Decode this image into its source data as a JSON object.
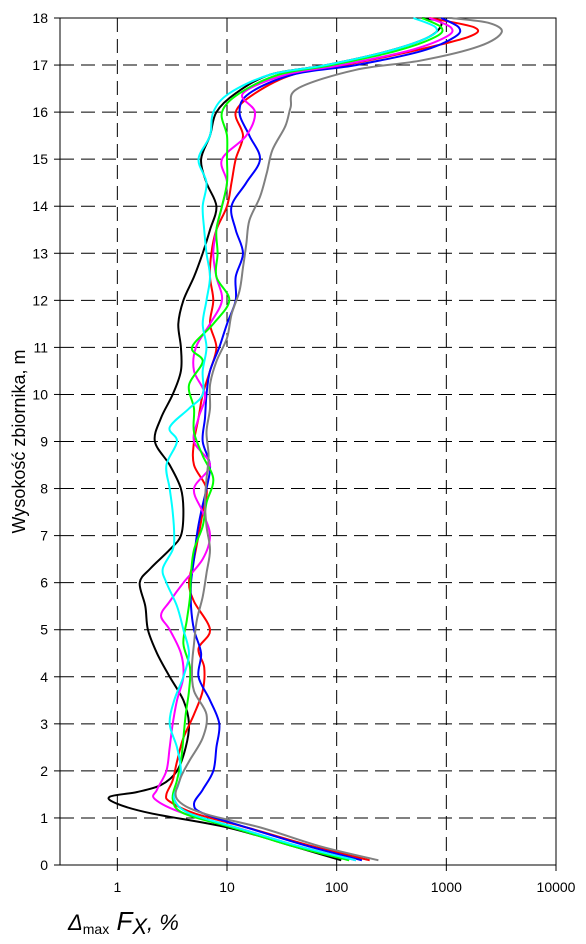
{
  "chart_data": {
    "type": "line",
    "ylabel": "Wysokość zbiornika, m",
    "xlabel": {
      "delta": "Δ",
      "sub": "max",
      "main": "F",
      "main_sub": "X",
      "rest": ", %"
    },
    "x_scale": "log",
    "xlim": [
      0.3,
      10000
    ],
    "ylim": [
      0,
      18
    ],
    "x_ticks": [
      1,
      10,
      100,
      1000,
      10000
    ],
    "x_tick_labels": [
      "1",
      "10",
      "100",
      "1000",
      "10000"
    ],
    "y_ticks": [
      0,
      1,
      2,
      3,
      4,
      5,
      6,
      7,
      8,
      9,
      10,
      11,
      12,
      13,
      14,
      15,
      16,
      17,
      18
    ],
    "grid": "dashed",
    "series": [
      {
        "color": "#000000",
        "points": [
          [
            110,
            0.1
          ],
          [
            40,
            0.4
          ],
          [
            10,
            0.8
          ],
          [
            2,
            1.1
          ],
          [
            1,
            1.3
          ],
          [
            0.85,
            1.45
          ],
          [
            1.5,
            1.55
          ],
          [
            2.5,
            1.7
          ],
          [
            3.5,
            2
          ],
          [
            4.2,
            2.5
          ],
          [
            4.5,
            3
          ],
          [
            4,
            3.5
          ],
          [
            3,
            4
          ],
          [
            2.3,
            4.5
          ],
          [
            1.9,
            5
          ],
          [
            1.8,
            5.5
          ],
          [
            1.6,
            6
          ],
          [
            2,
            6.3
          ],
          [
            3,
            6.7
          ],
          [
            3.8,
            7
          ],
          [
            4,
            7.5
          ],
          [
            3.8,
            8
          ],
          [
            3,
            8.5
          ],
          [
            2.2,
            9
          ],
          [
            2.5,
            9.5
          ],
          [
            3.2,
            10
          ],
          [
            3.8,
            10.5
          ],
          [
            3.8,
            11
          ],
          [
            3.6,
            11.5
          ],
          [
            4,
            12
          ],
          [
            5,
            12.5
          ],
          [
            6,
            13
          ],
          [
            7,
            13.5
          ],
          [
            8,
            14
          ],
          [
            6.5,
            14.5
          ],
          [
            5.8,
            15
          ],
          [
            7,
            15.5
          ],
          [
            8,
            16
          ],
          [
            12,
            16.4
          ],
          [
            25,
            16.8
          ],
          [
            80,
            17
          ],
          [
            300,
            17.3
          ],
          [
            700,
            17.6
          ],
          [
            900,
            17.9
          ],
          [
            600,
            18
          ]
        ]
      },
      {
        "color": "#ff0000",
        "points": [
          [
            200,
            0.1
          ],
          [
            60,
            0.4
          ],
          [
            15,
            0.8
          ],
          [
            5,
            1.1
          ],
          [
            3,
            1.35
          ],
          [
            2.8,
            1.5
          ],
          [
            3.2,
            1.8
          ],
          [
            3.5,
            2.2
          ],
          [
            4,
            2.7
          ],
          [
            5,
            3.2
          ],
          [
            6,
            3.7
          ],
          [
            6.2,
            4.2
          ],
          [
            5.5,
            4.6
          ],
          [
            7,
            5
          ],
          [
            5,
            5.6
          ],
          [
            4.5,
            6
          ],
          [
            5,
            6.5
          ],
          [
            5.5,
            7
          ],
          [
            6,
            7.5
          ],
          [
            6.5,
            8
          ],
          [
            5,
            8.5
          ],
          [
            5,
            9
          ],
          [
            5.5,
            9.5
          ],
          [
            6,
            10
          ],
          [
            7,
            10.5
          ],
          [
            8,
            11
          ],
          [
            7,
            11.5
          ],
          [
            7.5,
            12
          ],
          [
            7,
            12.5
          ],
          [
            7.2,
            13
          ],
          [
            8,
            13.5
          ],
          [
            10,
            14
          ],
          [
            11,
            14.5
          ],
          [
            12,
            15
          ],
          [
            14,
            15.5
          ],
          [
            12,
            16
          ],
          [
            18,
            16.4
          ],
          [
            40,
            16.8
          ],
          [
            120,
            17
          ],
          [
            500,
            17.3
          ],
          [
            1600,
            17.6
          ],
          [
            1800,
            17.8
          ],
          [
            700,
            18
          ]
        ]
      },
      {
        "color": "#0000ff",
        "points": [
          [
            170,
            0.1
          ],
          [
            55,
            0.4
          ],
          [
            15,
            0.8
          ],
          [
            6,
            1.1
          ],
          [
            5,
            1.3
          ],
          [
            6,
            1.6
          ],
          [
            7.5,
            2
          ],
          [
            8,
            2.5
          ],
          [
            8.5,
            3
          ],
          [
            7,
            3.5
          ],
          [
            5.5,
            4
          ],
          [
            5.8,
            4.5
          ],
          [
            5,
            5
          ],
          [
            4.7,
            5.5
          ],
          [
            4.7,
            6
          ],
          [
            5,
            6.5
          ],
          [
            5.3,
            7
          ],
          [
            5.8,
            7.5
          ],
          [
            6.5,
            8
          ],
          [
            7,
            8.5
          ],
          [
            6,
            9
          ],
          [
            6.3,
            9.5
          ],
          [
            6.5,
            10
          ],
          [
            7,
            10.5
          ],
          [
            8.5,
            11
          ],
          [
            10,
            11.5
          ],
          [
            12,
            12
          ],
          [
            12,
            12.5
          ],
          [
            14,
            13
          ],
          [
            12,
            13.5
          ],
          [
            11,
            14
          ],
          [
            15,
            14.5
          ],
          [
            20,
            15
          ],
          [
            16,
            15.5
          ],
          [
            13,
            16
          ],
          [
            16,
            16.4
          ],
          [
            40,
            16.8
          ],
          [
            150,
            17
          ],
          [
            600,
            17.3
          ],
          [
            1200,
            17.6
          ],
          [
            1300,
            17.8
          ],
          [
            900,
            18
          ]
        ]
      },
      {
        "color": "#ff00ff",
        "points": [
          [
            150,
            0.1
          ],
          [
            45,
            0.4
          ],
          [
            12,
            0.8
          ],
          [
            4,
            1.1
          ],
          [
            2.2,
            1.4
          ],
          [
            2.3,
            1.6
          ],
          [
            2.8,
            2
          ],
          [
            3,
            2.5
          ],
          [
            3.2,
            3
          ],
          [
            3.5,
            3.5
          ],
          [
            4,
            4
          ],
          [
            3.8,
            4.5
          ],
          [
            3,
            5
          ],
          [
            2.5,
            5.3
          ],
          [
            3,
            5.6
          ],
          [
            4,
            6
          ],
          [
            6,
            6.5
          ],
          [
            7,
            7
          ],
          [
            6,
            7.5
          ],
          [
            5,
            8
          ],
          [
            7,
            8.5
          ],
          [
            5,
            9
          ],
          [
            5.5,
            9.5
          ],
          [
            6.3,
            10
          ],
          [
            5,
            10.5
          ],
          [
            5.2,
            11
          ],
          [
            7,
            11.5
          ],
          [
            9,
            12
          ],
          [
            8,
            12.5
          ],
          [
            7.5,
            13
          ],
          [
            8,
            13.5
          ],
          [
            9,
            14
          ],
          [
            10,
            14.5
          ],
          [
            9,
            15
          ],
          [
            15,
            15.5
          ],
          [
            18,
            16
          ],
          [
            14,
            16.4
          ],
          [
            35,
            16.8
          ],
          [
            110,
            17
          ],
          [
            450,
            17.3
          ],
          [
            1000,
            17.6
          ],
          [
            1100,
            17.8
          ],
          [
            700,
            18
          ]
        ]
      },
      {
        "color": "#00ff00",
        "points": [
          [
            130,
            0.1
          ],
          [
            40,
            0.4
          ],
          [
            11,
            0.8
          ],
          [
            4,
            1.1
          ],
          [
            3.2,
            1.4
          ],
          [
            3.5,
            1.8
          ],
          [
            3.8,
            2.2
          ],
          [
            4,
            2.7
          ],
          [
            4.2,
            3.2
          ],
          [
            4.5,
            3.7
          ],
          [
            4.6,
            4.2
          ],
          [
            4,
            4.7
          ],
          [
            4.3,
            5.2
          ],
          [
            4.6,
            5.7
          ],
          [
            4.7,
            6.2
          ],
          [
            5,
            6.7
          ],
          [
            6,
            7.2
          ],
          [
            6.5,
            7.7
          ],
          [
            7.5,
            8.2
          ],
          [
            6,
            8.7
          ],
          [
            5,
            9.2
          ],
          [
            5,
            9.7
          ],
          [
            4.5,
            10.2
          ],
          [
            6,
            10.7
          ],
          [
            4.8,
            11
          ],
          [
            7.5,
            11.5
          ],
          [
            10.5,
            12
          ],
          [
            8,
            12.5
          ],
          [
            8.2,
            13
          ],
          [
            8,
            13.5
          ],
          [
            9,
            14
          ],
          [
            10,
            14.5
          ],
          [
            10,
            15
          ],
          [
            10,
            15.5
          ],
          [
            9,
            16
          ],
          [
            13,
            16.4
          ],
          [
            30,
            16.8
          ],
          [
            90,
            17
          ],
          [
            350,
            17.3
          ],
          [
            800,
            17.6
          ],
          [
            900,
            17.8
          ],
          [
            600,
            18
          ]
        ]
      },
      {
        "color": "#00ffff",
        "points": [
          [
            150,
            0.1
          ],
          [
            45,
            0.4
          ],
          [
            12,
            0.8
          ],
          [
            4.5,
            1.1
          ],
          [
            3.3,
            1.4
          ],
          [
            3.6,
            1.7
          ],
          [
            3.8,
            2
          ],
          [
            3.5,
            2.5
          ],
          [
            3,
            3
          ],
          [
            3.3,
            3.5
          ],
          [
            4,
            4
          ],
          [
            4.5,
            4.5
          ],
          [
            4,
            5
          ],
          [
            3.5,
            5.5
          ],
          [
            2.8,
            6
          ],
          [
            2.6,
            6.3
          ],
          [
            3.2,
            6.7
          ],
          [
            3.3,
            7
          ],
          [
            3.2,
            7.5
          ],
          [
            3,
            8
          ],
          [
            2.8,
            8.5
          ],
          [
            3.5,
            9
          ],
          [
            3,
            9.3
          ],
          [
            4.5,
            9.7
          ],
          [
            6,
            10
          ],
          [
            6,
            10.5
          ],
          [
            6.5,
            11
          ],
          [
            6,
            11.5
          ],
          [
            6.5,
            12
          ],
          [
            7,
            12.5
          ],
          [
            6.5,
            13
          ],
          [
            6.2,
            13.5
          ],
          [
            6,
            14
          ],
          [
            6.5,
            14.5
          ],
          [
            5.5,
            15
          ],
          [
            7,
            15.5
          ],
          [
            7.5,
            16
          ],
          [
            10.5,
            16.4
          ],
          [
            25,
            16.8
          ],
          [
            80,
            17
          ],
          [
            300,
            17.3
          ],
          [
            700,
            17.6
          ],
          [
            800,
            17.8
          ],
          [
            500,
            18
          ]
        ]
      },
      {
        "color": "#808080",
        "points": [
          [
            240,
            0.1
          ],
          [
            70,
            0.4
          ],
          [
            20,
            0.8
          ],
          [
            6,
            1.1
          ],
          [
            3.5,
            1.4
          ],
          [
            3.7,
            1.8
          ],
          [
            4.5,
            2.2
          ],
          [
            6,
            2.7
          ],
          [
            6.5,
            3.2
          ],
          [
            5,
            3.7
          ],
          [
            4.8,
            4.2
          ],
          [
            5,
            4.7
          ],
          [
            5.3,
            5.2
          ],
          [
            6,
            5.7
          ],
          [
            6.5,
            6.2
          ],
          [
            7,
            6.7
          ],
          [
            6.5,
            7.2
          ],
          [
            6.3,
            7.7
          ],
          [
            6.5,
            8.2
          ],
          [
            6.8,
            8.7
          ],
          [
            6.5,
            9.2
          ],
          [
            7,
            9.7
          ],
          [
            7,
            10.2
          ],
          [
            8,
            10.7
          ],
          [
            10,
            11.2
          ],
          [
            11,
            11.7
          ],
          [
            13,
            12.2
          ],
          [
            14,
            12.7
          ],
          [
            15,
            13.2
          ],
          [
            16,
            13.7
          ],
          [
            20,
            14.2
          ],
          [
            23,
            14.7
          ],
          [
            26,
            15.2
          ],
          [
            34,
            15.7
          ],
          [
            38,
            16.1
          ],
          [
            44,
            16.5
          ],
          [
            150,
            16.9
          ],
          [
            600,
            17.1
          ],
          [
            2000,
            17.4
          ],
          [
            3200,
            17.7
          ],
          [
            2400,
            17.9
          ],
          [
            1100,
            18
          ]
        ]
      }
    ]
  }
}
